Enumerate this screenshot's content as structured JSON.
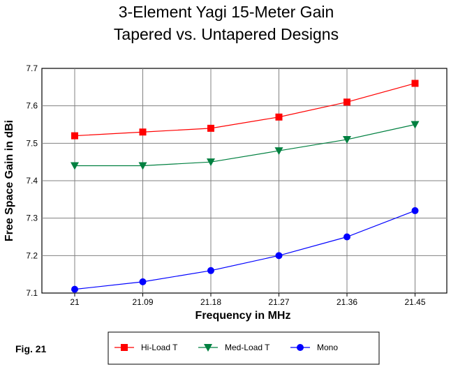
{
  "figure_label": "Fig. 21",
  "chart_data": {
    "type": "line",
    "title": "3-Element Yagi 15-Meter Gain",
    "subtitle": "Tapered vs. Untapered Designs",
    "xlabel": "Frequency in MHz",
    "ylabel": "Free Space Gain in dBi",
    "categories": [
      "21",
      "21.09",
      "21.18",
      "21.27",
      "21.36",
      "21.45"
    ],
    "ylim": [
      7.1,
      7.7
    ],
    "yticks": [
      "7.1",
      "7.2",
      "7.3",
      "7.4",
      "7.5",
      "7.6",
      "7.7"
    ],
    "grid": true,
    "legend_position": "bottom",
    "series": [
      {
        "name": "Hi-Load T",
        "color": "#ff0000",
        "marker": "square",
        "values": [
          7.52,
          7.53,
          7.54,
          7.57,
          7.61,
          7.66
        ]
      },
      {
        "name": "Med-Load T",
        "color": "#008040",
        "marker": "triangle-down",
        "values": [
          7.44,
          7.44,
          7.45,
          7.48,
          7.51,
          7.55
        ]
      },
      {
        "name": "Mono",
        "color": "#0000ff",
        "marker": "circle",
        "values": [
          7.11,
          7.13,
          7.16,
          7.2,
          7.25,
          7.32
        ]
      }
    ]
  }
}
